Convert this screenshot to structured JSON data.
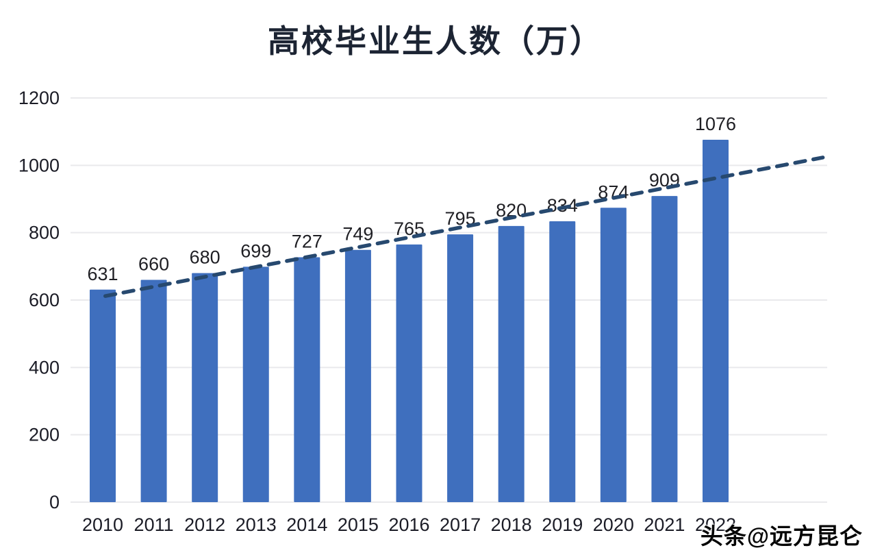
{
  "title": "高校毕业生人数（万）",
  "watermark": "头条@远方昆仑",
  "chart_data": {
    "type": "bar",
    "title": "高校毕业生人数（万）",
    "categories": [
      "2010",
      "2011",
      "2012",
      "2013",
      "2014",
      "2015",
      "2016",
      "2017",
      "2018",
      "2019",
      "2020",
      "2021",
      "2022"
    ],
    "values": [
      631,
      660,
      680,
      699,
      727,
      749,
      765,
      795,
      820,
      834,
      874,
      909,
      1076
    ],
    "data_labels": [
      631,
      660,
      680,
      699,
      727,
      749,
      765,
      795,
      820,
      834,
      874,
      909,
      1076
    ],
    "xlabel": "",
    "ylabel": "",
    "ylim": [
      0,
      1200
    ],
    "yticks": [
      0,
      200,
      400,
      600,
      800,
      1000,
      1200
    ],
    "grid": true,
    "legend": "none",
    "trendline": {
      "type": "linear",
      "style": "dashed",
      "extends_past_last_bar": true
    },
    "colors": {
      "bar": "#3f6fbe",
      "trend": "#27496f",
      "grid": "#e9e9ec",
      "axis_text": "#1b1c26",
      "value_label": "#1f1f24",
      "background": "#ffffff"
    }
  }
}
